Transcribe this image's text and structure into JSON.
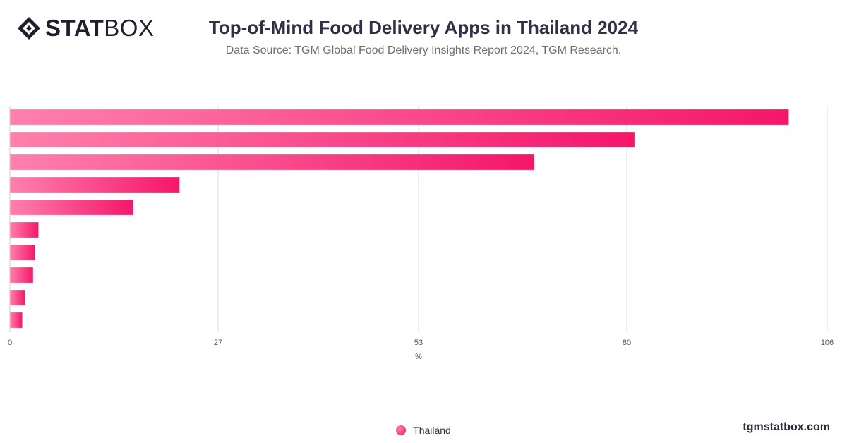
{
  "brand": {
    "logo_bold": "STAT",
    "logo_light": "BOX"
  },
  "header": {
    "title": "Top-of-Mind Food Delivery Apps in Thailand 2024",
    "subtitle": "Data Source: TGM Global Food Delivery Insights Report 2024, TGM Research."
  },
  "colors": {
    "bar_light": "#ff80ac",
    "bar_dark": "#f5166a",
    "grid": "#dddddd"
  },
  "chart_data": {
    "type": "bar",
    "orientation": "horizontal",
    "categories": [
      "",
      "",
      "",
      "",
      "",
      "",
      "",
      "",
      "",
      ""
    ],
    "series": [
      {
        "name": "Thailand",
        "values": [
          101,
          81,
          68,
          22,
          16,
          3.7,
          3.3,
          3,
          2,
          1.6
        ]
      }
    ],
    "xlabel": "%",
    "ylabel": "",
    "xlim": [
      0,
      106
    ],
    "x_ticks": [
      0,
      27,
      53,
      80,
      106
    ],
    "x_tick_labels": [
      "0",
      "27",
      "53",
      "80",
      "106"
    ],
    "grid": true,
    "legend_position": "bottom-center"
  },
  "legend": {
    "label": "Thailand"
  },
  "footer": {
    "site": "tgmstatbox.com"
  }
}
